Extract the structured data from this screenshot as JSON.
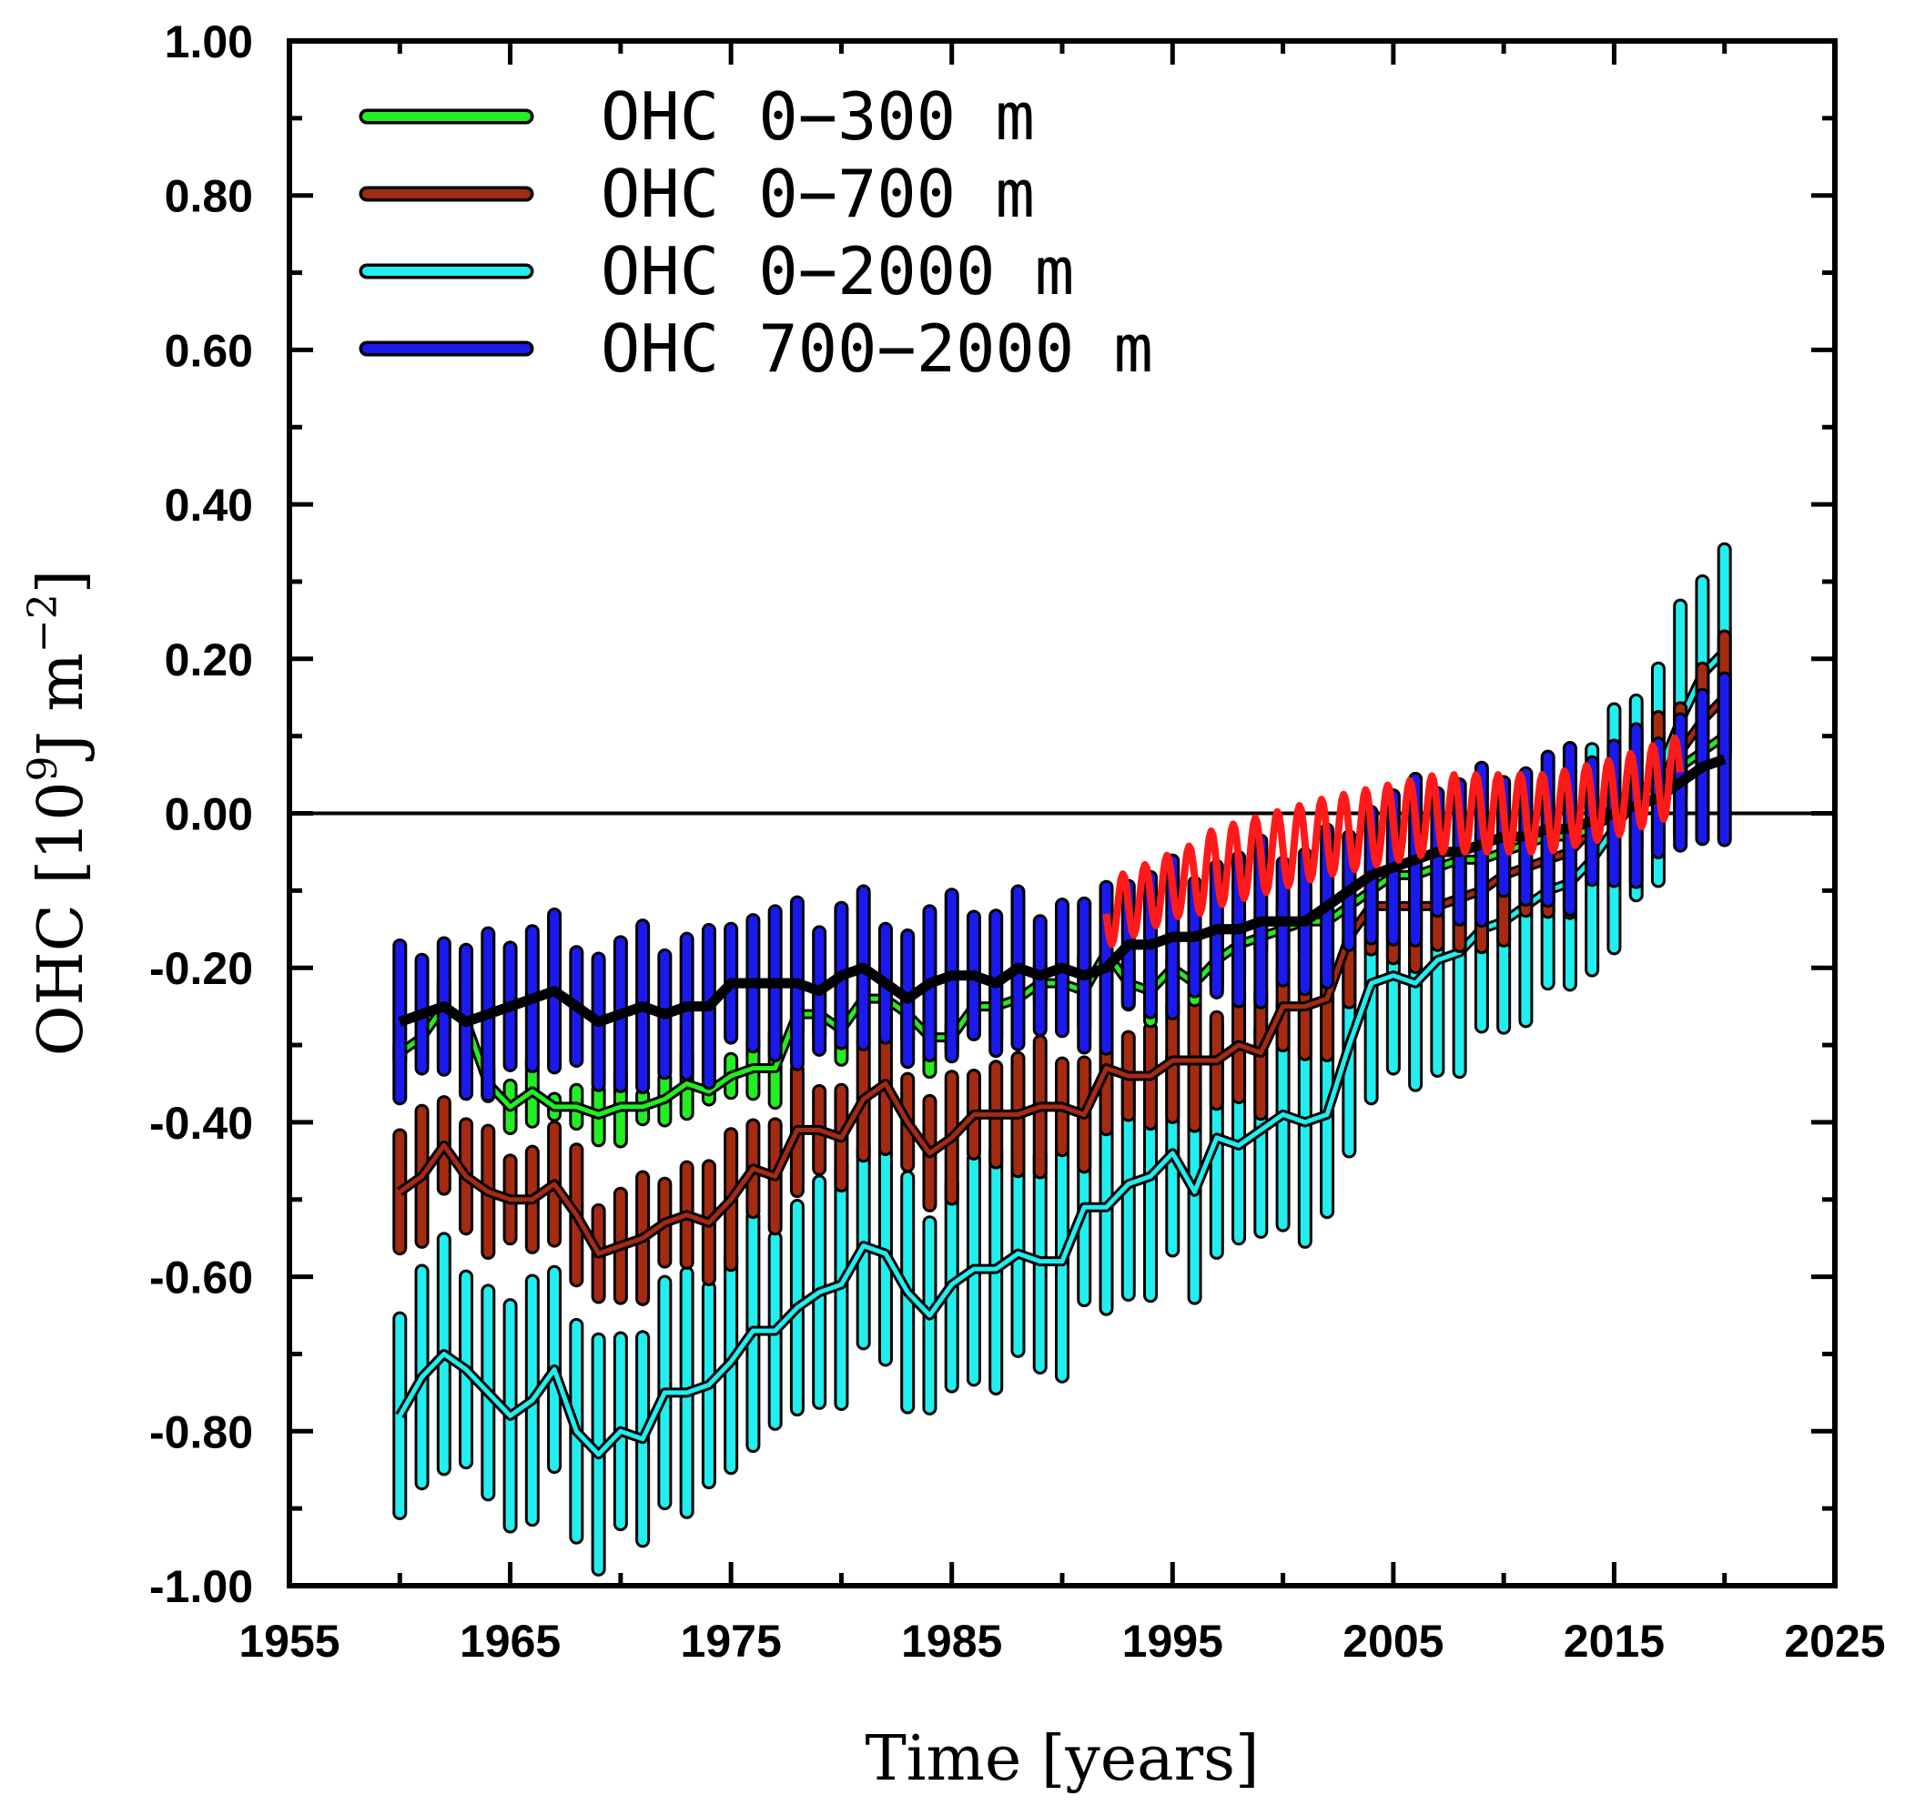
{
  "chart_data": {
    "type": "line",
    "xlabel": "Time [years]",
    "ylabel": "OHC [10",
    "ylabel_exponent": "9",
    "ylabel_unit": "J m",
    "ylabel_unit_exponent": "−2",
    "ylabel_close": "]",
    "xlim": [
      1955,
      2025
    ],
    "ylim": [
      -1.0,
      1.0
    ],
    "x_ticks": [
      "1955",
      "1965",
      "1975",
      "1985",
      "1995",
      "2005",
      "2015",
      "2025"
    ],
    "y_ticks": [
      "1.00",
      "0.80",
      "0.60",
      "0.40",
      "0.20",
      "0.00",
      "-0.20",
      "-0.40",
      "-0.60",
      "-0.80",
      "-1.00"
    ],
    "zero_line": true,
    "legend": [
      {
        "label": "OHC 0−300 m",
        "color": "#22ee22"
      },
      {
        "label": "OHC 0−700 m",
        "color": "#a52a12"
      },
      {
        "label": "OHC 0−2000 m",
        "color": "#22eeee"
      },
      {
        "label": "OHC 700−2000 m",
        "color": "#1a1aee"
      }
    ],
    "years": [
      1960,
      1961,
      1962,
      1963,
      1964,
      1965,
      1966,
      1967,
      1968,
      1969,
      1970,
      1971,
      1972,
      1973,
      1974,
      1975,
      1976,
      1977,
      1978,
      1979,
      1980,
      1981,
      1982,
      1983,
      1984,
      1985,
      1986,
      1987,
      1988,
      1989,
      1990,
      1991,
      1992,
      1993,
      1994,
      1995,
      1996,
      1997,
      1998,
      1999,
      2000,
      2001,
      2002,
      2003,
      2004,
      2005,
      2006,
      2007,
      2008,
      2009,
      2010,
      2011,
      2012,
      2013,
      2014,
      2015,
      2016,
      2017,
      2018,
      2019,
      2020
    ],
    "series": [
      {
        "name": "OHC 0−300 m",
        "color": "#22ee22",
        "halfwidth": 0.03,
        "values": [
          -0.31,
          -0.29,
          -0.25,
          -0.27,
          -0.35,
          -0.38,
          -0.36,
          -0.38,
          -0.38,
          -0.39,
          -0.38,
          -0.38,
          -0.37,
          -0.35,
          -0.36,
          -0.34,
          -0.33,
          -0.33,
          -0.26,
          -0.26,
          -0.28,
          -0.24,
          -0.24,
          -0.26,
          -0.29,
          -0.29,
          -0.25,
          -0.25,
          -0.24,
          -0.22,
          -0.22,
          -0.23,
          -0.18,
          -0.22,
          -0.23,
          -0.2,
          -0.22,
          -0.19,
          -0.17,
          -0.16,
          -0.15,
          -0.14,
          -0.14,
          -0.12,
          -0.1,
          -0.08,
          -0.08,
          -0.07,
          -0.06,
          -0.06,
          -0.05,
          -0.04,
          -0.03,
          -0.03,
          -0.02,
          0.0,
          0.01,
          0.03,
          0.06,
          0.08,
          0.1
        ]
      },
      {
        "name": "OHC 0−700 m",
        "color": "#a52a12",
        "halfwidth": 0.07,
        "values": [
          -0.49,
          -0.47,
          -0.43,
          -0.47,
          -0.49,
          -0.5,
          -0.5,
          -0.48,
          -0.52,
          -0.57,
          -0.56,
          -0.55,
          -0.53,
          -0.52,
          -0.53,
          -0.5,
          -0.46,
          -0.47,
          -0.41,
          -0.41,
          -0.42,
          -0.37,
          -0.35,
          -0.4,
          -0.44,
          -0.42,
          -0.39,
          -0.39,
          -0.39,
          -0.38,
          -0.38,
          -0.39,
          -0.33,
          -0.34,
          -0.34,
          -0.32,
          -0.32,
          -0.32,
          -0.3,
          -0.31,
          -0.25,
          -0.25,
          -0.24,
          -0.16,
          -0.12,
          -0.12,
          -0.12,
          -0.12,
          -0.11,
          -0.1,
          -0.08,
          -0.07,
          -0.06,
          -0.05,
          -0.02,
          0.01,
          0.03,
          0.04,
          0.08,
          0.12,
          0.15
        ]
      },
      {
        "name": "OHC 0−2000 m",
        "color": "#22eeee",
        "halfwidth": 0.14,
        "values": [
          -0.78,
          -0.73,
          -0.7,
          -0.72,
          -0.75,
          -0.78,
          -0.76,
          -0.72,
          -0.8,
          -0.83,
          -0.8,
          -0.81,
          -0.75,
          -0.75,
          -0.74,
          -0.71,
          -0.67,
          -0.67,
          -0.64,
          -0.62,
          -0.61,
          -0.56,
          -0.57,
          -0.62,
          -0.65,
          -0.61,
          -0.59,
          -0.59,
          -0.57,
          -0.58,
          -0.58,
          -0.51,
          -0.51,
          -0.48,
          -0.47,
          -0.44,
          -0.49,
          -0.42,
          -0.43,
          -0.41,
          -0.39,
          -0.4,
          -0.39,
          -0.3,
          -0.22,
          -0.21,
          -0.22,
          -0.19,
          -0.18,
          -0.15,
          -0.14,
          -0.12,
          -0.1,
          -0.09,
          -0.06,
          -0.02,
          0.02,
          0.05,
          0.12,
          0.18,
          0.21
        ]
      },
      {
        "name": "OHC 700−2000 m",
        "color": "#1a1aee",
        "halfwidth": 0.09,
        "values": [
          -0.27,
          -0.26,
          -0.25,
          -0.27,
          -0.26,
          -0.25,
          -0.24,
          -0.23,
          -0.25,
          -0.27,
          -0.26,
          -0.25,
          -0.26,
          -0.25,
          -0.25,
          -0.22,
          -0.22,
          -0.22,
          -0.22,
          -0.23,
          -0.21,
          -0.2,
          -0.22,
          -0.24,
          -0.22,
          -0.21,
          -0.21,
          -0.22,
          -0.2,
          -0.21,
          -0.2,
          -0.21,
          -0.2,
          -0.17,
          -0.17,
          -0.16,
          -0.16,
          -0.15,
          -0.15,
          -0.14,
          -0.14,
          -0.14,
          -0.12,
          -0.1,
          -0.08,
          -0.07,
          -0.06,
          -0.05,
          -0.05,
          -0.04,
          -0.03,
          -0.03,
          -0.02,
          -0.02,
          -0.01,
          0.0,
          0.01,
          0.02,
          0.04,
          0.06,
          0.07
        ]
      }
    ],
    "black_line": {
      "name": "700−2000 m mean",
      "color": "#000000",
      "x_start": 1960,
      "x_end": 2020,
      "values": [
        -0.27,
        -0.26,
        -0.25,
        -0.27,
        -0.26,
        -0.25,
        -0.24,
        -0.23,
        -0.25,
        -0.27,
        -0.26,
        -0.25,
        -0.26,
        -0.25,
        -0.25,
        -0.22,
        -0.22,
        -0.22,
        -0.22,
        -0.23,
        -0.21,
        -0.2,
        -0.22,
        -0.24,
        -0.22,
        -0.21,
        -0.21,
        -0.22,
        -0.2,
        -0.21,
        -0.2,
        -0.21,
        -0.2,
        -0.17,
        -0.17,
        -0.16,
        -0.16,
        -0.15,
        -0.15,
        -0.14,
        -0.14,
        -0.14,
        -0.12,
        -0.1,
        -0.08,
        -0.07,
        -0.06,
        -0.05,
        -0.05,
        -0.04,
        -0.03,
        -0.03,
        -0.02,
        -0.02,
        -0.01,
        0.0,
        0.01,
        0.02,
        0.04,
        0.06,
        0.07
      ]
    },
    "red_line": {
      "name": "monthly record",
      "color": "#ff1a1a",
      "x_start": 1992.0,
      "x_end": 2018.0,
      "step_years": 0.0833,
      "trend_points": [
        [
          1992.0,
          -0.13
        ],
        [
          1997.0,
          -0.07
        ],
        [
          2002.0,
          -0.03
        ],
        [
          2007.0,
          0.0
        ],
        [
          2012.0,
          0.0
        ],
        [
          2015.0,
          0.02
        ],
        [
          2018.0,
          0.05
        ]
      ],
      "seasonal_amplitude": 0.05
    }
  }
}
